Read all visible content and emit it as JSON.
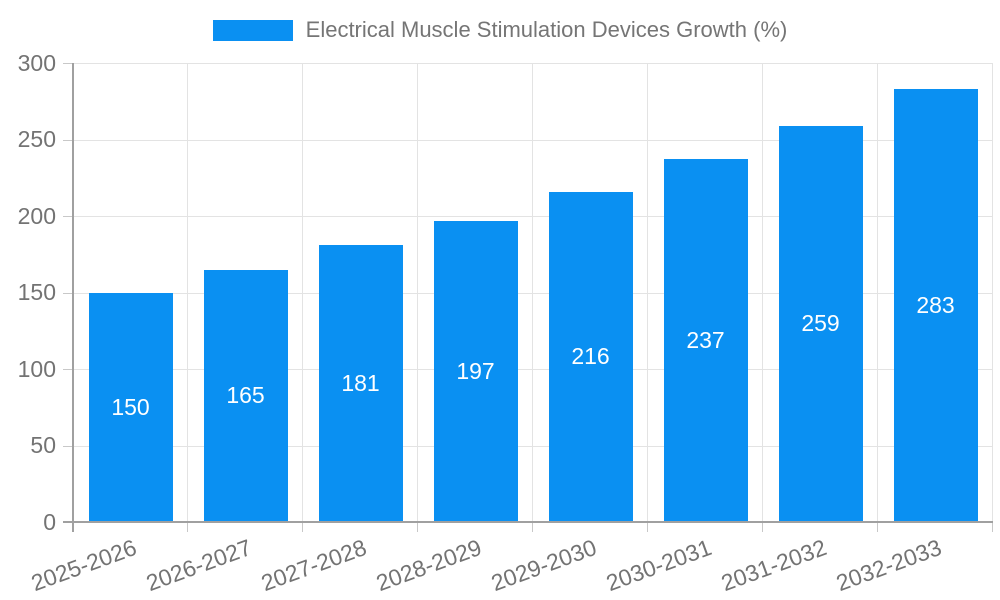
{
  "chart_data": {
    "type": "bar",
    "title": "Electrical Muscle Stimulation Devices Growth (%)",
    "categories": [
      "2025-2026",
      "2026-2027",
      "2027-2028",
      "2028-2029",
      "2029-2030",
      "2030-2031",
      "2031-2032",
      "2032-2033"
    ],
    "values": [
      150,
      165,
      181,
      197,
      216,
      237,
      259,
      283
    ],
    "xlabel": "",
    "ylabel": "",
    "ylim": [
      0,
      300
    ],
    "ytick_step": 50,
    "yticks": [
      0,
      50,
      100,
      150,
      200,
      250,
      300
    ],
    "grid": true,
    "legend_position": "top",
    "value_labels": "centered-inside-bars-white"
  },
  "colors": {
    "bar": "#0a90f2",
    "grid": "#e3e3e3",
    "axis": "#a0a0a0",
    "tick": "#c8c8c8",
    "tick_text": "#737373",
    "legend_text": "#757575",
    "value_text": "#ffffff",
    "background": "#ffffff"
  }
}
